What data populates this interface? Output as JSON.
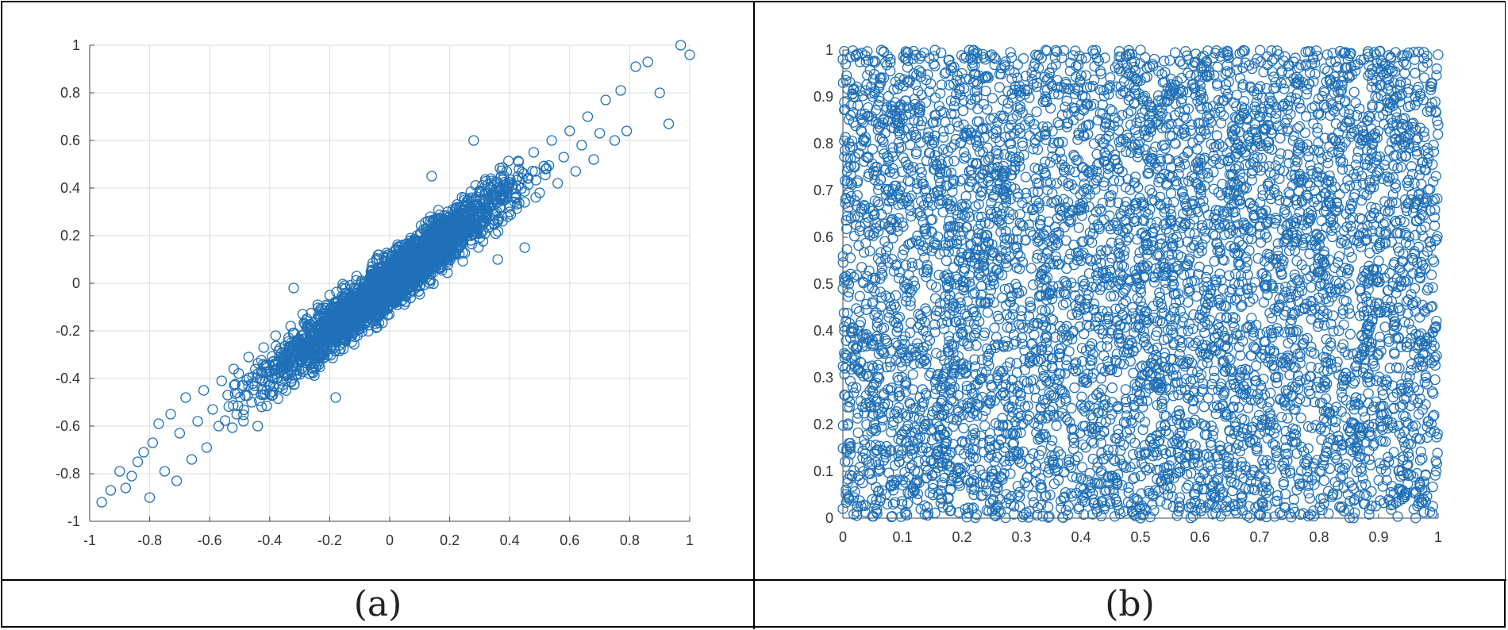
{
  "marker_color": "#1f70b8",
  "captions": {
    "a": "(a)",
    "b": "(b)"
  },
  "chart_data": [
    {
      "type": "scatter",
      "panel": "(a)",
      "marker": "open circle",
      "grid": true,
      "xlim": [
        -1,
        1
      ],
      "ylim": [
        -1,
        1
      ],
      "xticks": [
        -1,
        -0.8,
        -0.6,
        -0.4,
        -0.2,
        0,
        0.2,
        0.4,
        0.6,
        0.8,
        1
      ],
      "yticks": [
        -1,
        -0.8,
        -0.6,
        -0.4,
        -0.2,
        0,
        0.2,
        0.4,
        0.6,
        0.8,
        1
      ],
      "xtick_labels": [
        "-1",
        "-0.8",
        "-0.6",
        "-0.4",
        "-0.2",
        "0",
        "0.2",
        "0.4",
        "0.6",
        "0.8",
        "1"
      ],
      "ytick_labels": [
        "-1",
        "-0.8",
        "-0.6",
        "-0.4",
        "-0.2",
        "0",
        "0.2",
        "0.4",
        "0.6",
        "0.8",
        "1"
      ],
      "points": [
        [
          -0.96,
          -0.92
        ],
        [
          -0.93,
          -0.87
        ],
        [
          -0.9,
          -0.79
        ],
        [
          -0.88,
          -0.86
        ],
        [
          -0.86,
          -0.81
        ],
        [
          -0.84,
          -0.75
        ],
        [
          -0.82,
          -0.71
        ],
        [
          -0.8,
          -0.9
        ],
        [
          -0.79,
          -0.67
        ],
        [
          -0.77,
          -0.59
        ],
        [
          -0.75,
          -0.79
        ],
        [
          -0.73,
          -0.55
        ],
        [
          -0.71,
          -0.83
        ],
        [
          -0.7,
          -0.63
        ],
        [
          -0.68,
          -0.48
        ],
        [
          -0.66,
          -0.74
        ],
        [
          -0.64,
          -0.58
        ],
        [
          -0.62,
          -0.45
        ],
        [
          -0.61,
          -0.69
        ],
        [
          -0.59,
          -0.53
        ],
        [
          -0.57,
          -0.6
        ],
        [
          -0.56,
          -0.41
        ],
        [
          -0.54,
          -0.47
        ],
        [
          -0.52,
          -0.36
        ],
        [
          -0.51,
          -0.55
        ],
        [
          -0.49,
          -0.43
        ],
        [
          -0.47,
          -0.31
        ],
        [
          -0.46,
          -0.5
        ],
        [
          -0.44,
          -0.38
        ],
        [
          -0.42,
          -0.27
        ],
        [
          -0.41,
          -0.45
        ],
        [
          -0.39,
          -0.33
        ],
        [
          -0.38,
          -0.22
        ],
        [
          -0.36,
          -0.41
        ],
        [
          -0.35,
          -0.29
        ],
        [
          -0.33,
          -0.18
        ],
        [
          -0.32,
          -0.37
        ],
        [
          -0.3,
          -0.25
        ],
        [
          -0.29,
          -0.13
        ],
        [
          -0.27,
          -0.33
        ],
        [
          -0.26,
          -0.21
        ],
        [
          -0.24,
          -0.09
        ],
        [
          -0.23,
          -0.28
        ],
        [
          -0.21,
          -0.17
        ],
        [
          -0.2,
          -0.05
        ],
        [
          -0.18,
          -0.24
        ],
        [
          -0.17,
          -0.12
        ],
        [
          -0.15,
          -0.01
        ],
        [
          -0.14,
          -0.2
        ],
        [
          -0.12,
          -0.08
        ],
        [
          -0.11,
          0.03
        ],
        [
          -0.09,
          -0.15
        ],
        [
          -0.08,
          -0.04
        ],
        [
          -0.06,
          0.07
        ],
        [
          -0.05,
          -0.11
        ],
        [
          -0.03,
          0.0
        ],
        [
          -0.02,
          0.11
        ],
        [
          0.0,
          -0.07
        ],
        [
          0.01,
          0.04
        ],
        [
          0.03,
          0.15
        ],
        [
          0.04,
          -0.02
        ],
        [
          0.06,
          0.08
        ],
        [
          0.07,
          0.19
        ],
        [
          0.09,
          0.02
        ],
        [
          0.1,
          0.12
        ],
        [
          0.12,
          0.23
        ],
        [
          0.13,
          0.06
        ],
        [
          0.15,
          0.16
        ],
        [
          0.16,
          0.27
        ],
        [
          0.18,
          0.1
        ],
        [
          0.19,
          0.2
        ],
        [
          0.21,
          0.31
        ],
        [
          0.22,
          0.14
        ],
        [
          0.24,
          0.24
        ],
        [
          0.25,
          0.35
        ],
        [
          0.27,
          0.18
        ],
        [
          0.28,
          0.28
        ],
        [
          0.3,
          0.39
        ],
        [
          0.31,
          0.22
        ],
        [
          0.33,
          0.32
        ],
        [
          0.34,
          0.43
        ],
        [
          0.36,
          0.26
        ],
        [
          0.37,
          0.36
        ],
        [
          0.39,
          0.47
        ],
        [
          0.4,
          0.3
        ],
        [
          0.42,
          0.4
        ],
        [
          0.43,
          0.51
        ],
        [
          0.45,
          0.34
        ],
        [
          0.46,
          0.44
        ],
        [
          0.48,
          0.55
        ],
        [
          0.5,
          0.38
        ],
        [
          0.52,
          0.48
        ],
        [
          0.54,
          0.6
        ],
        [
          0.56,
          0.42
        ],
        [
          0.58,
          0.53
        ],
        [
          0.6,
          0.64
        ],
        [
          0.62,
          0.47
        ],
        [
          0.64,
          0.58
        ],
        [
          0.66,
          0.7
        ],
        [
          0.68,
          0.52
        ],
        [
          0.7,
          0.63
        ],
        [
          0.72,
          0.77
        ],
        [
          0.75,
          0.6
        ],
        [
          0.77,
          0.81
        ],
        [
          0.79,
          0.64
        ],
        [
          0.82,
          0.91
        ],
        [
          0.86,
          0.93
        ],
        [
          0.9,
          0.8
        ],
        [
          0.93,
          0.67
        ],
        [
          0.97,
          1.0
        ],
        [
          1.0,
          0.96
        ],
        [
          -0.44,
          -0.6
        ],
        [
          0.28,
          0.6
        ],
        [
          0.14,
          0.45
        ],
        [
          -0.32,
          -0.02
        ],
        [
          0.36,
          0.1
        ],
        [
          -0.18,
          -0.48
        ],
        [
          0.45,
          0.15
        ]
      ]
    },
    {
      "type": "scatter",
      "panel": "(b)",
      "marker": "open circle",
      "grid": false,
      "distribution": "uniform",
      "xlim": [
        0,
        1
      ],
      "ylim": [
        0,
        1
      ],
      "xticks": [
        0,
        0.1,
        0.2,
        0.3,
        0.4,
        0.5,
        0.6,
        0.7,
        0.8,
        0.9,
        1
      ],
      "yticks": [
        0,
        0.1,
        0.2,
        0.3,
        0.4,
        0.5,
        0.6,
        0.7,
        0.8,
        0.9,
        1
      ],
      "xtick_labels": [
        "0",
        "0.1",
        "0.2",
        "0.3",
        "0.4",
        "0.5",
        "0.6",
        "0.7",
        "0.8",
        "0.9",
        "1"
      ],
      "ytick_labels": [
        "0",
        "0.1",
        "0.2",
        "0.3",
        "0.4",
        "0.5",
        "0.6",
        "0.7",
        "0.8",
        "0.9",
        "1"
      ],
      "points": [
        [
          0.0,
          0.02
        ],
        [
          0.01,
          0.5
        ],
        [
          0.0,
          0.98
        ],
        [
          0.02,
          0.75
        ],
        [
          0.03,
          0.25
        ],
        [
          0.05,
          0.9
        ],
        [
          0.06,
          0.1
        ],
        [
          0.08,
          0.62
        ],
        [
          0.1,
          0.38
        ],
        [
          0.12,
          0.85
        ],
        [
          0.14,
          0.15
        ],
        [
          0.16,
          0.7
        ],
        [
          0.18,
          0.45
        ],
        [
          0.2,
          0.95
        ],
        [
          0.22,
          0.05
        ],
        [
          0.24,
          0.58
        ],
        [
          0.26,
          0.3
        ],
        [
          0.28,
          0.8
        ],
        [
          0.3,
          0.2
        ],
        [
          0.32,
          0.66
        ],
        [
          0.34,
          0.42
        ],
        [
          0.36,
          0.92
        ],
        [
          0.38,
          0.12
        ],
        [
          0.4,
          0.55
        ],
        [
          0.42,
          0.35
        ],
        [
          0.44,
          0.78
        ],
        [
          0.46,
          0.08
        ],
        [
          0.48,
          0.6
        ],
        [
          0.5,
          0.5
        ],
        [
          0.52,
          0.97
        ],
        [
          0.54,
          0.22
        ],
        [
          0.56,
          0.72
        ],
        [
          0.58,
          0.4
        ],
        [
          0.6,
          0.88
        ],
        [
          0.62,
          0.03
        ],
        [
          0.64,
          0.65
        ],
        [
          0.66,
          0.28
        ],
        [
          0.68,
          0.52
        ],
        [
          0.7,
          0.18
        ],
        [
          0.72,
          0.83
        ],
        [
          0.74,
          0.47
        ],
        [
          0.76,
          0.93
        ],
        [
          0.78,
          0.1
        ],
        [
          0.8,
          0.6
        ],
        [
          0.82,
          0.33
        ],
        [
          0.84,
          0.76
        ],
        [
          0.86,
          0.2
        ],
        [
          0.88,
          0.69
        ],
        [
          0.9,
          0.44
        ],
        [
          0.92,
          0.96
        ],
        [
          0.94,
          0.06
        ],
        [
          0.96,
          0.57
        ],
        [
          0.98,
          0.3
        ],
        [
          1.0,
          0.84
        ],
        [
          0.99,
          0.01
        ],
        [
          1.0,
          0.99
        ],
        [
          0.5,
          0.0
        ],
        [
          0.5,
          1.0
        ],
        [
          0.25,
          0.99
        ],
        [
          0.75,
          0.01
        ]
      ]
    }
  ]
}
